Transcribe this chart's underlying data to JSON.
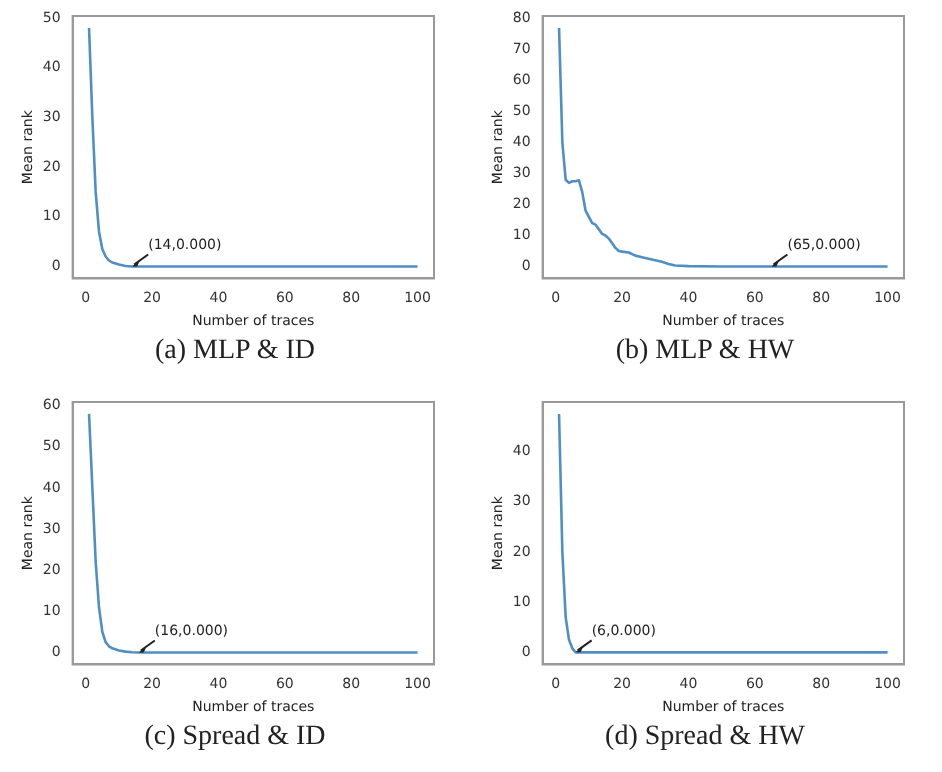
{
  "chart_data": [
    {
      "type": "line",
      "title": "(a) MLP & ID",
      "xlabel": "Number of traces",
      "ylabel": "Mean rank",
      "xlim": [
        -3.95,
        104.95
      ],
      "xticks": [
        0,
        20,
        40,
        60,
        80,
        100
      ],
      "ylim": [
        -2.4,
        50.4
      ],
      "yticks": [
        0,
        10,
        20,
        30,
        40,
        50
      ],
      "grid": false,
      "legend": false,
      "marker": "none",
      "line_style": "solid",
      "series": [
        {
          "color": "#4f8fc4",
          "x": [
            1,
            2,
            3,
            4,
            5,
            6,
            7,
            8,
            10,
            12,
            14,
            100
          ],
          "values": [
            48,
            30,
            15,
            7,
            3.5,
            2,
            1.2,
            0.8,
            0.4,
            0.1,
            0,
            0
          ]
        }
      ],
      "annotations": [
        {
          "text": "(14,0.000)",
          "x": 14,
          "y": 0
        }
      ]
    },
    {
      "type": "line",
      "title": "(b) MLP & HW",
      "xlabel": "Number of traces",
      "ylabel": "Mean rank",
      "xlim": [
        -3.95,
        104.95
      ],
      "xticks": [
        0,
        20,
        40,
        60,
        80,
        100
      ],
      "ylim": [
        -3.85,
        80.85
      ],
      "yticks": [
        0,
        10,
        20,
        30,
        40,
        50,
        60,
        70,
        80
      ],
      "grid": false,
      "legend": false,
      "marker": "none",
      "line_style": "solid",
      "series": [
        {
          "color": "#4f8fc4",
          "x": [
            1,
            2,
            3,
            4,
            5,
            6,
            7,
            8,
            9,
            10,
            11,
            12,
            13,
            14,
            15,
            16,
            17,
            18,
            19,
            20,
            22,
            24,
            26,
            28,
            30,
            32,
            34,
            36,
            40,
            50,
            65,
            100
          ],
          "values": [
            77,
            40,
            28,
            27,
            27.5,
            27.5,
            27.8,
            24,
            18,
            16,
            14,
            13.5,
            12,
            10.5,
            10,
            9,
            7.5,
            6,
            5,
            4.8,
            4.5,
            3.5,
            3,
            2.5,
            2,
            1.5,
            0.8,
            0.3,
            0.1,
            0,
            0,
            0
          ]
        }
      ],
      "annotations": [
        {
          "text": "(65,0.000)",
          "x": 65,
          "y": 0
        }
      ]
    },
    {
      "type": "line",
      "title": "(c) Spread & ID",
      "xlabel": "Number of traces",
      "ylabel": "Mean rank",
      "xlim": [
        -3.95,
        104.95
      ],
      "xticks": [
        0,
        20,
        40,
        60,
        80,
        100
      ],
      "ylim": [
        -2.9,
        60.9
      ],
      "yticks": [
        0,
        10,
        20,
        30,
        40,
        50,
        60
      ],
      "grid": false,
      "legend": false,
      "marker": "none",
      "line_style": "solid",
      "series": [
        {
          "color": "#4f8fc4",
          "x": [
            1,
            2,
            3,
            4,
            5,
            6,
            7,
            8,
            10,
            12,
            14,
            16,
            100
          ],
          "values": [
            58,
            40,
            22,
            11,
            5,
            2.5,
            1.5,
            1,
            0.5,
            0.2,
            0.05,
            0,
            0
          ]
        }
      ],
      "annotations": [
        {
          "text": "(16,0.000)",
          "x": 16,
          "y": 0
        }
      ]
    },
    {
      "type": "line",
      "title": "(d) Spread & HW",
      "xlabel": "Number of traces",
      "ylabel": "Mean rank",
      "xlim": [
        -3.95,
        104.95
      ],
      "xticks": [
        0,
        20,
        40,
        60,
        80,
        100
      ],
      "ylim": [
        -2.4,
        49.9
      ],
      "yticks": [
        0,
        10,
        20,
        30,
        40
      ],
      "grid": false,
      "legend": false,
      "marker": "none",
      "line_style": "solid",
      "series": [
        {
          "color": "#4f8fc4",
          "x": [
            1,
            2,
            3,
            4,
            5,
            6,
            100
          ],
          "values": [
            47.5,
            20,
            7,
            2.5,
            0.8,
            0,
            0
          ]
        }
      ],
      "annotations": [
        {
          "text": "(6,0.000)",
          "x": 6,
          "y": 0
        }
      ]
    }
  ]
}
